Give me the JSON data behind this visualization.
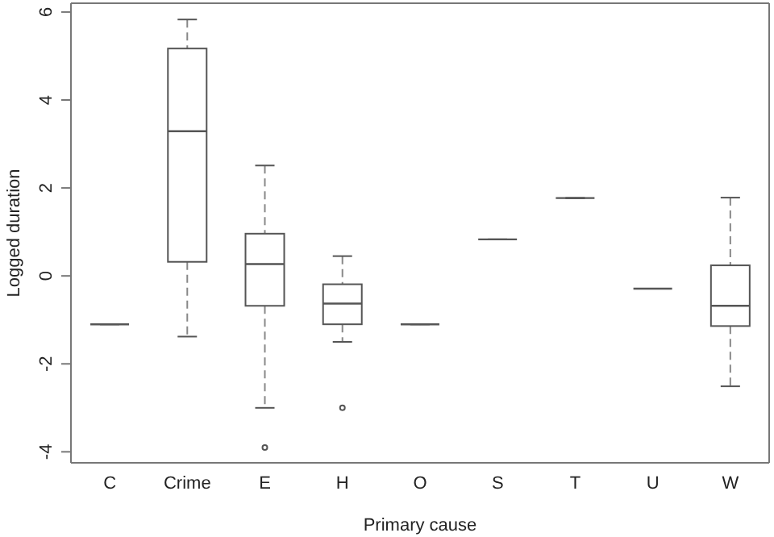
{
  "chart_data": {
    "type": "box",
    "xlabel": "Primary cause",
    "ylabel": "Logged duration",
    "color": "#555555",
    "line_style": "dashed",
    "marker": "circle",
    "categories": [
      "C",
      "Crime",
      "E",
      "H",
      "O",
      "S",
      "T",
      "U",
      "W"
    ],
    "boxes": [
      {
        "low": -1.1,
        "q1": -1.1,
        "median": -1.1,
        "q3": -1.1,
        "high": -1.1
      },
      {
        "low": -1.38,
        "q1": 0.32,
        "median": 3.29,
        "q3": 5.17,
        "high": 5.83
      },
      {
        "low": -3.0,
        "q1": -0.68,
        "median": 0.27,
        "q3": 0.96,
        "high": 2.51,
        "outliers": [
          -3.9
        ]
      },
      {
        "low": -1.5,
        "q1": -1.1,
        "median": -0.63,
        "q3": -0.19,
        "high": 0.45,
        "outliers": [
          -3.0
        ]
      },
      {
        "low": -1.1,
        "q1": -1.1,
        "median": -1.1,
        "q3": -1.1,
        "high": -1.1
      },
      {
        "low": 0.83,
        "q1": 0.83,
        "median": 0.83,
        "q3": 0.83,
        "high": 0.83
      },
      {
        "low": 1.77,
        "q1": 1.77,
        "median": 1.77,
        "q3": 1.77,
        "high": 1.77
      },
      {
        "low": -0.29,
        "q1": -0.29,
        "median": -0.29,
        "q3": -0.29,
        "high": -0.29
      },
      {
        "low": -2.51,
        "q1": -1.14,
        "median": -0.68,
        "q3": 0.24,
        "high": 1.78
      }
    ],
    "ylim": [
      -4.25,
      6.2
    ],
    "yticks": [
      -4,
      -2,
      0,
      2,
      4,
      6
    ]
  }
}
